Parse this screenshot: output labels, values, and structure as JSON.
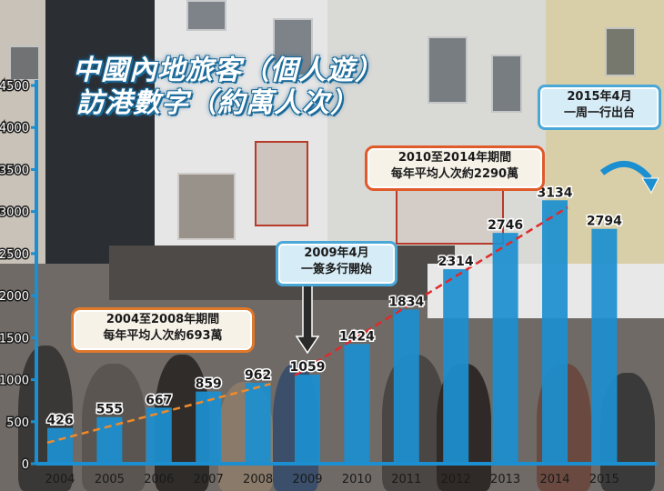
{
  "title": {
    "line1": "中國內地旅客（個人遊）",
    "line2": "訪港數字（約萬人次）"
  },
  "callouts": {
    "avg_2004_2008": {
      "line1": "2004至2008年期間",
      "line2": "每年平均人次約693萬"
    },
    "april_2009": {
      "line1": "2009年4月",
      "line2": "一簽多行開始"
    },
    "avg_2010_2014": {
      "line1": "2010至2014年期間",
      "line2": "每年平均人次約2290萬"
    },
    "april_2015": {
      "line1": "2015年4月",
      "line2": "一周一行出台"
    }
  },
  "colors": {
    "bar": "#1c8fd0",
    "axis": "#1c8fd0",
    "trend_2004_2008": "#f08a2a",
    "trend_2010_2014": "#e02a2a",
    "title_outline": "#1a6a9a"
  },
  "chart_data": {
    "type": "bar",
    "title": "中國內地旅客（個人遊）訪港數字（約萬人次）",
    "categories": [
      "2004",
      "2005",
      "2006",
      "2007",
      "2008",
      "2009",
      "2010",
      "2011",
      "2012",
      "2013",
      "2014",
      "2015"
    ],
    "values": [
      426,
      555,
      667,
      859,
      962,
      1059,
      1424,
      1834,
      2314,
      2746,
      3134,
      2794
    ],
    "data_labels": [
      "426",
      "555",
      "667",
      "859",
      "962",
      "1059",
      "1424",
      "1834",
      "2314",
      "2746",
      "3134",
      "2794"
    ],
    "ylim": [
      0,
      4500
    ],
    "yticks": [
      "0",
      "500",
      "1000",
      "1500",
      "2000",
      "2500",
      "3000",
      "3500",
      "4000",
      "4500"
    ],
    "xlabel": "",
    "ylabel": "",
    "grid": false,
    "trend_lines": [
      {
        "style": "dashed",
        "color": "#f08a2a",
        "from": {
          "x": "2004",
          "y": 250
        },
        "to": {
          "x": "2008",
          "y": 950
        }
      },
      {
        "style": "dashed",
        "color": "#e02a2a",
        "from": {
          "x": "2009",
          "y": 1050
        },
        "to": {
          "x": "2014",
          "y": 3050
        }
      }
    ]
  }
}
